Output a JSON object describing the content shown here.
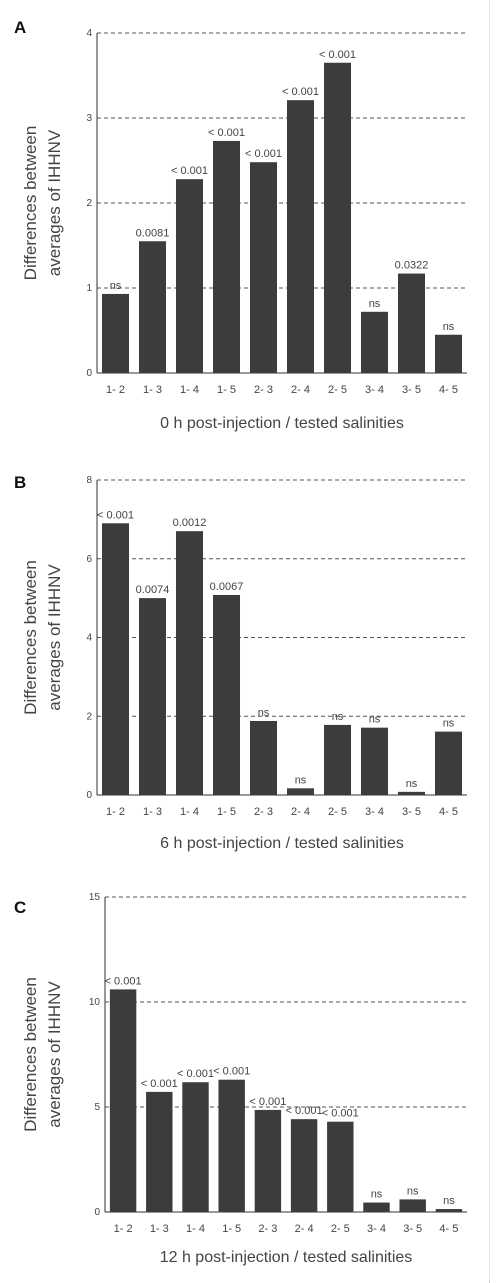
{
  "chart_data": [
    {
      "type": "bar",
      "panel_label": "A",
      "categories": [
        "1- 2",
        "1- 3",
        "1- 4",
        "1- 5",
        "2- 3",
        "2- 4",
        "2- 5",
        "3- 4",
        "3- 5",
        "4- 5"
      ],
      "values": [
        0.93,
        1.55,
        2.28,
        2.73,
        2.48,
        3.21,
        3.65,
        0.72,
        1.17,
        0.45
      ],
      "annotations": [
        "ns",
        "0.0081",
        "< 0.001",
        "< 0.001",
        "< 0.001",
        "< 0.001",
        "< 0.001",
        "ns",
        "0.0322",
        "ns"
      ],
      "ylim": [
        0,
        4
      ],
      "yticks": [
        0,
        1,
        2,
        3,
        4
      ],
      "ylabel_line1": "Differences between",
      "ylabel_line2": "averages of IHHNV",
      "xlabel": "0 h post-injection / tested salinities",
      "grid": "horizontal dashed",
      "bar_color": "#3c3c3c"
    },
    {
      "type": "bar",
      "panel_label": "B",
      "categories": [
        "1- 2",
        "1- 3",
        "1- 4",
        "1- 5",
        "2- 3",
        "2- 4",
        "2- 5",
        "3- 4",
        "3- 5",
        "4- 5"
      ],
      "values": [
        6.9,
        5.0,
        6.7,
        5.08,
        1.88,
        0.17,
        1.78,
        1.71,
        0.08,
        1.61
      ],
      "annotations": [
        "< 0.001",
        "0.0074",
        "0.0012",
        "0.0067",
        "ns",
        "ns",
        "ns",
        "ns",
        "ns",
        "ns"
      ],
      "ylim": [
        0,
        8
      ],
      "yticks": [
        0,
        2,
        4,
        6,
        8
      ],
      "ylabel_line1": "Differences between",
      "ylabel_line2": "averages of IHHNV",
      "xlabel": "6 h post-injection / tested salinities",
      "grid": "horizontal dashed",
      "bar_color": "#3c3c3c"
    },
    {
      "type": "bar",
      "panel_label": "C",
      "categories": [
        "1- 2",
        "1- 3",
        "1- 4",
        "1- 5",
        "2- 3",
        "2- 4",
        "2- 5",
        "3- 4",
        "3- 5",
        "4- 5"
      ],
      "values": [
        10.6,
        5.72,
        6.18,
        6.3,
        4.86,
        4.42,
        4.3,
        0.45,
        0.6,
        0.14
      ],
      "annotations": [
        "< 0.001",
        "< 0.001",
        "< 0.001",
        "< 0.001",
        "< 0.001",
        "< 0.001",
        "< 0.001",
        "ns",
        "ns",
        "ns"
      ],
      "ylim": [
        0,
        15
      ],
      "yticks": [
        0,
        5,
        10,
        15
      ],
      "ylabel_line1": "Differences between",
      "ylabel_line2": "averages of IHHNV",
      "xlabel": "12 h post-injection / tested  salinities",
      "grid": "horizontal dashed",
      "bar_color": "#3c3c3c"
    }
  ]
}
